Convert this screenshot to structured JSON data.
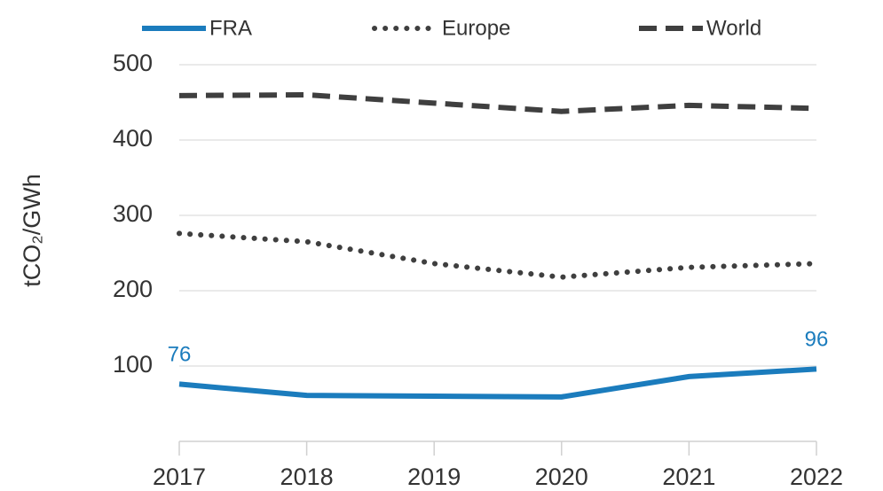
{
  "chart_data": {
    "type": "line",
    "y_label": "tCO₂/GWh",
    "categories": [
      "2017",
      "2018",
      "2019",
      "2020",
      "2021",
      "2022"
    ],
    "series": [
      {
        "name": "FRA",
        "color": "#1b7cbd",
        "style": "solid",
        "end_labels": true,
        "values": [
          76,
          61,
          60,
          59,
          86,
          96
        ]
      },
      {
        "name": "Europe",
        "color": "#3f3f3f",
        "style": "dotted",
        "end_labels": false,
        "values": [
          276,
          265,
          236,
          218,
          231,
          236
        ]
      },
      {
        "name": "World",
        "color": "#3f3f3f",
        "style": "dashed",
        "end_labels": false,
        "values": [
          459,
          460,
          449,
          438,
          446,
          442
        ]
      }
    ],
    "ylim": [
      0,
      500
    ],
    "yticks": [
      100,
      200,
      300,
      400,
      500
    ],
    "grid": true,
    "legend": "top"
  }
}
